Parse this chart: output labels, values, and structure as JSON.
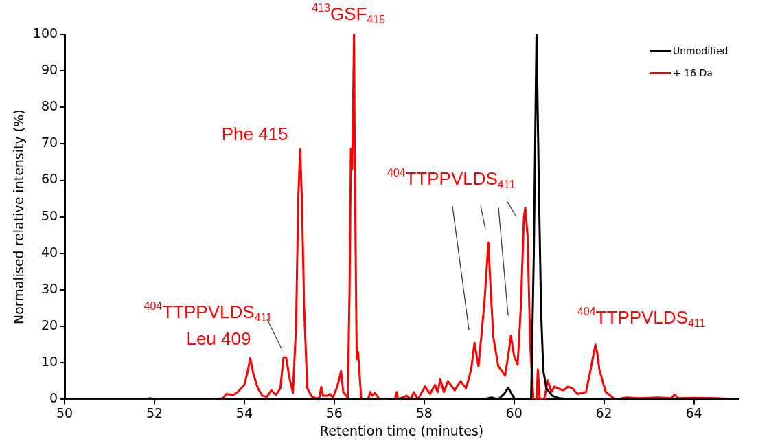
{
  "chart_data": {
    "type": "line",
    "xlabel": "Retention time (minutes)",
    "ylabel": "Normalised relative intensity (%)",
    "xlim": [
      50,
      65
    ],
    "xticks": [
      50,
      52,
      54,
      56,
      58,
      60,
      62,
      64
    ],
    "ylim": [
      0,
      100
    ],
    "yticks": [
      0,
      10,
      20,
      30,
      40,
      50,
      60,
      70,
      80,
      90,
      100
    ],
    "grid": false,
    "legend": "top right",
    "marker": "none",
    "line_style": "solid",
    "series": [
      {
        "name": "Unmodified",
        "color": "#000000",
        "x": [
          50,
          59.3,
          59.5,
          59.65,
          59.78,
          59.87,
          59.97,
          60.02,
          60.38,
          60.44,
          60.5,
          60.55,
          60.6,
          60.65,
          60.72,
          60.85,
          61.0,
          61.3,
          65
        ],
        "values": [
          0,
          0,
          0.5,
          0,
          1.5,
          3.2,
          1,
          0,
          0,
          40,
          100,
          60,
          25,
          8,
          3,
          1,
          0.3,
          0,
          0
        ]
      },
      {
        "name": "+ 16 Da",
        "color": "#ff0000",
        "x": [
          50,
          51.85,
          51.9,
          51.95,
          53.4,
          53.45,
          53.5,
          53.6,
          53.75,
          53.85,
          54.0,
          54.08,
          54.13,
          54.2,
          54.3,
          54.4,
          54.5,
          54.6,
          54.7,
          54.8,
          54.87,
          54.93,
          55.0,
          55.08,
          55.15,
          55.2,
          55.24,
          55.28,
          55.33,
          55.4,
          55.5,
          55.6,
          55.67,
          55.71,
          55.75,
          55.85,
          55.9,
          55.97,
          56.05,
          56.1,
          56.15,
          56.2,
          56.3,
          56.34,
          56.37,
          56.4,
          56.44,
          56.46,
          56.5,
          56.53,
          56.6,
          56.75,
          56.8,
          56.85,
          56.9,
          57.0,
          57.35,
          57.39,
          57.42,
          57.61,
          57.7,
          57.77,
          57.86,
          58.02,
          58.13,
          58.24,
          58.3,
          58.36,
          58.44,
          58.53,
          58.68,
          58.81,
          58.93,
          59.0,
          59.05,
          59.12,
          59.21,
          59.34,
          59.43,
          59.48,
          59.54,
          59.65,
          59.72,
          59.8,
          59.87,
          59.93,
          60.0,
          60.08,
          60.15,
          60.22,
          60.25,
          60.3,
          60.36,
          60.43,
          60.5,
          60.53,
          60.57,
          60.67,
          60.75,
          60.83,
          60.9,
          60.98,
          61.1,
          61.2,
          61.3,
          61.41,
          61.6,
          61.7,
          61.81,
          61.86,
          61.9,
          62.04,
          62.25,
          62.5,
          62.8,
          63.2,
          63.5,
          63.57,
          63.65,
          64.0,
          64.5,
          65
        ],
        "values": [
          0,
          0,
          0.4,
          0,
          0,
          0.3,
          0,
          1.5,
          1.2,
          2,
          4,
          8,
          11.3,
          7,
          3,
          1,
          0.7,
          2.5,
          1.2,
          3,
          11.5,
          11.5,
          6,
          1.8,
          20,
          55,
          68.5,
          55,
          25,
          3,
          0.8,
          0.2,
          0.5,
          3.4,
          1,
          1,
          1.5,
          0.5,
          3,
          5,
          7.8,
          2,
          0.5,
          30,
          68.6,
          63,
          100,
          60,
          11,
          13,
          0,
          0,
          2,
          1,
          1.8,
          0.2,
          0,
          2,
          0,
          1,
          0,
          2,
          0,
          3.5,
          1.5,
          4,
          2,
          5.5,
          2,
          5,
          2.5,
          5,
          3,
          6,
          8.5,
          15.5,
          9,
          26.4,
          43,
          30,
          17,
          9,
          8,
          6.5,
          12,
          17.5,
          12,
          9.5,
          25,
          50,
          52.5,
          45,
          15,
          0,
          0,
          8.2,
          0,
          0,
          5.2,
          2,
          3.5,
          3,
          2.5,
          3.5,
          3,
          1.5,
          2,
          8,
          15,
          12,
          8,
          2,
          0,
          0.5,
          0.3,
          0.5,
          0.3,
          1.3,
          0.3,
          0.4,
          0.3,
          0
        ]
      }
    ],
    "annotations": [
      {
        "text": "$^{413}$GSF$_{415}$",
        "x": 56.44,
        "y": 100
      },
      {
        "text": "Phe 415",
        "x": 55.24,
        "y": 68.5
      },
      {
        "text": "$^{404}$TTPPVLDS$_{411}$",
        "x": 54.9,
        "y": 11.5
      },
      {
        "text": "Leu 409",
        "x": 54.13,
        "y": 11.3
      },
      {
        "text": "$^{404}$TTPPVLDS$_{411}$",
        "x": 60.25,
        "y": 52.5
      },
      {
        "text": "$^{404}$TTPPVLDS$_{411}$",
        "x": 61.81,
        "y": 15
      }
    ]
  }
}
